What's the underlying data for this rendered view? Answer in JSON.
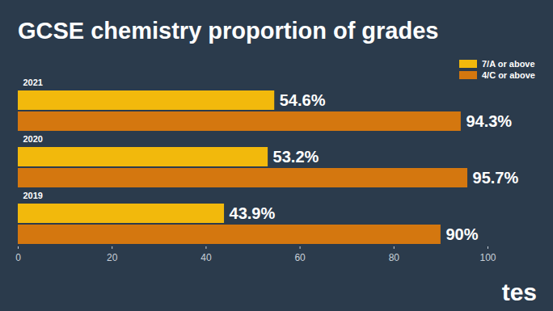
{
  "chart_data": {
    "type": "bar",
    "title": "GCSE chemistry proportion of grades",
    "orientation": "horizontal",
    "categories": [
      "2021",
      "2020",
      "2019"
    ],
    "series": [
      {
        "name": "7/A or above",
        "color": "#f2b90c",
        "values": [
          54.6,
          53.2,
          43.9
        ],
        "value_labels": [
          "54.6%",
          "53.2%",
          "43.9%"
        ]
      },
      {
        "name": "4/C or above",
        "color": "#d4770f",
        "values": [
          94.3,
          95.7,
          90
        ],
        "value_labels": [
          "94.3%",
          "95.7%",
          "90%"
        ]
      }
    ],
    "xlim": [
      0,
      100
    ],
    "xticks": [
      0,
      20,
      40,
      60,
      80,
      100
    ],
    "grid": false,
    "legend": "top-right",
    "data_labels": true,
    "credit": "tes"
  }
}
